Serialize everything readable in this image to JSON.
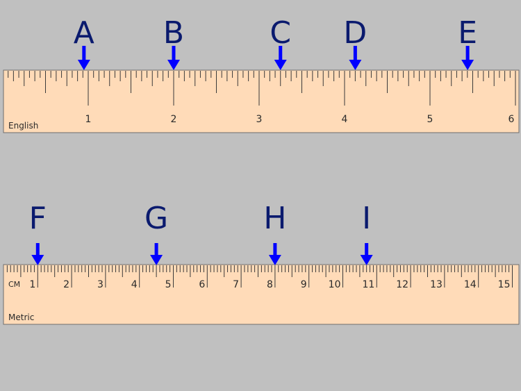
{
  "english_ruler": {
    "label": "English",
    "numbers": [
      "1",
      "2",
      "3",
      "4",
      "5",
      "6"
    ],
    "markers": [
      {
        "letter": "A",
        "value": 0.95
      },
      {
        "letter": "B",
        "value": 2.0
      },
      {
        "letter": "C",
        "value": 3.25
      },
      {
        "letter": "D",
        "value": 4.125
      },
      {
        "letter": "E",
        "value": 5.44
      }
    ]
  },
  "metric_ruler": {
    "label": "Metric",
    "unit": "CM",
    "numbers": [
      "1",
      "2",
      "3",
      "4",
      "5",
      "6",
      "7",
      "8",
      "9",
      "10",
      "11",
      "12",
      "13",
      "14",
      "15"
    ],
    "markers": [
      {
        "letter": "F",
        "value": 1.0
      },
      {
        "letter": "G",
        "value": 4.5
      },
      {
        "letter": "H",
        "value": 8.0
      },
      {
        "letter": "I",
        "value": 10.7
      }
    ]
  },
  "colors": {
    "background": "#c0c0c0",
    "ruler_fill": "#ffdbb8",
    "arrow": "#0000ff",
    "letter": "#0a1a6e"
  }
}
